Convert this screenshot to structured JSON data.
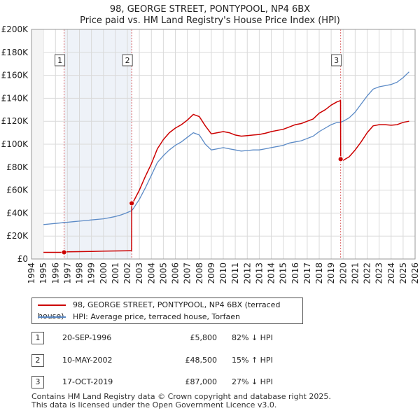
{
  "title_line1": "98, GEORGE STREET, PONTYPOOL, NP4 6BX",
  "title_line2": "Price paid vs. HM Land Registry's House Price Index (HPI)",
  "colors": {
    "price": "#cc0000",
    "hpi": "#5b8ac6",
    "grid": "#d9d9d9",
    "sale_band": "#eef2f8",
    "marker_line": "#dd6666"
  },
  "legend": {
    "price_label": "98, GEORGE STREET, PONTYPOOL, NP4 6BX (terraced house)",
    "hpi_label": "HPI: Average price, terraced house, Torfaen"
  },
  "transactions": [
    {
      "num": "1",
      "date": "20-SEP-1996",
      "price": "£5,800",
      "hpi_change": "82% ↓ HPI"
    },
    {
      "num": "2",
      "date": "10-MAY-2002",
      "price": "£48,500",
      "hpi_change": "15% ↑ HPI"
    },
    {
      "num": "3",
      "date": "17-OCT-2019",
      "price": "£87,000",
      "hpi_change": "27% ↓ HPI"
    }
  ],
  "footer": {
    "line1": "Contains HM Land Registry data © Crown copyright and database right 2025.",
    "line2": "This data is licensed under the Open Government Licence v3.0."
  },
  "chart_data": {
    "type": "line",
    "xlim": [
      1994,
      2026
    ],
    "ylim": [
      0,
      200000
    ],
    "y_ticks": [
      0,
      20000,
      40000,
      60000,
      80000,
      100000,
      120000,
      140000,
      160000,
      180000,
      200000
    ],
    "y_tick_labels": [
      "£0",
      "£20K",
      "£40K",
      "£60K",
      "£80K",
      "£100K",
      "£120K",
      "£140K",
      "£160K",
      "£180K",
      "£200K"
    ],
    "x_ticks": [
      1994,
      1995,
      1996,
      1997,
      1998,
      1999,
      2000,
      2001,
      2002,
      2003,
      2004,
      2005,
      2006,
      2007,
      2008,
      2009,
      2010,
      2011,
      2012,
      2013,
      2014,
      2015,
      2016,
      2017,
      2018,
      2019,
      2020,
      2021,
      2022,
      2023,
      2024,
      2025,
      2026
    ],
    "data_start_year": 1995,
    "sales": [
      {
        "label": "1",
        "year": 1996.72,
        "value": 5800
      },
      {
        "label": "2",
        "year": 2002.36,
        "value": 48500
      },
      {
        "label": "3",
        "year": 2019.79,
        "value": 87000
      }
    ],
    "series": [
      {
        "name": "HPI: Average price, terraced house, Torfaen",
        "x": [
          1995.0,
          1995.5,
          1996.0,
          1996.5,
          1996.72,
          1997.0,
          1997.5,
          1998.0,
          1998.5,
          1999.0,
          1999.5,
          2000.0,
          2000.5,
          2001.0,
          2001.5,
          2002.0,
          2002.36,
          2002.5,
          2003.0,
          2003.5,
          2004.0,
          2004.5,
          2005.0,
          2005.5,
          2006.0,
          2006.5,
          2007.0,
          2007.5,
          2008.0,
          2008.5,
          2009.0,
          2009.5,
          2010.0,
          2010.5,
          2011.0,
          2011.5,
          2012.0,
          2012.5,
          2013.0,
          2013.5,
          2014.0,
          2014.5,
          2015.0,
          2015.5,
          2016.0,
          2016.5,
          2017.0,
          2017.5,
          2018.0,
          2018.5,
          2019.0,
          2019.5,
          2019.79,
          2020.0,
          2020.5,
          2021.0,
          2021.5,
          2022.0,
          2022.5,
          2023.0,
          2023.5,
          2024.0,
          2024.5,
          2025.0,
          2025.5
        ],
        "values": [
          30000,
          30500,
          31000,
          31500,
          31900,
          32000,
          32500,
          33000,
          33500,
          34000,
          34500,
          35000,
          36000,
          37000,
          38500,
          40500,
          42200,
          44000,
          52000,
          62000,
          73000,
          84000,
          90000,
          95000,
          99000,
          102000,
          106000,
          110000,
          108000,
          100000,
          95000,
          96000,
          97000,
          96000,
          95000,
          94000,
          94500,
          95000,
          95000,
          96000,
          97000,
          98000,
          99000,
          101000,
          102000,
          103000,
          105000,
          107000,
          111000,
          114000,
          117000,
          119000,
          119200,
          120000,
          123000,
          128000,
          135000,
          142000,
          148000,
          150000,
          151000,
          152000,
          154000,
          158000,
          163000
        ]
      },
      {
        "name": "98, GEORGE STREET, PONTYPOOL, NP4 6BX (terraced house)",
        "x": [
          1995.0,
          1996.0,
          1996.72,
          1997.0,
          1998.0,
          1999.0,
          2000.0,
          2001.0,
          2002.0,
          2002.35,
          2002.36,
          2002.5,
          2003.0,
          2003.5,
          2004.0,
          2004.5,
          2005.0,
          2005.5,
          2006.0,
          2006.5,
          2007.0,
          2007.5,
          2008.0,
          2008.5,
          2009.0,
          2009.5,
          2010.0,
          2010.5,
          2011.0,
          2011.5,
          2012.0,
          2012.5,
          2013.0,
          2013.5,
          2014.0,
          2014.5,
          2015.0,
          2015.5,
          2016.0,
          2016.5,
          2017.0,
          2017.5,
          2018.0,
          2018.5,
          2019.0,
          2019.5,
          2019.78,
          2019.79,
          2020.0,
          2020.5,
          2021.0,
          2021.5,
          2022.0,
          2022.5,
          2023.0,
          2023.5,
          2024.0,
          2024.5,
          2025.0,
          2025.5
        ],
        "values": [
          5800,
          5800,
          5800,
          6200,
          6400,
          6600,
          6800,
          7000,
          7200,
          7300,
          48500,
          50000,
          60000,
          72000,
          83000,
          96000,
          104000,
          110000,
          114000,
          117000,
          121000,
          126000,
          124000,
          116000,
          109000,
          110000,
          111000,
          110000,
          108000,
          107000,
          107500,
          108000,
          108500,
          109500,
          111000,
          112000,
          113000,
          115000,
          117000,
          118000,
          120000,
          122000,
          127000,
          130000,
          134000,
          137000,
          138000,
          87000,
          86000,
          89000,
          95000,
          102000,
          110000,
          116000,
          117000,
          117000,
          116500,
          117000,
          119000,
          120000
        ]
      }
    ]
  }
}
